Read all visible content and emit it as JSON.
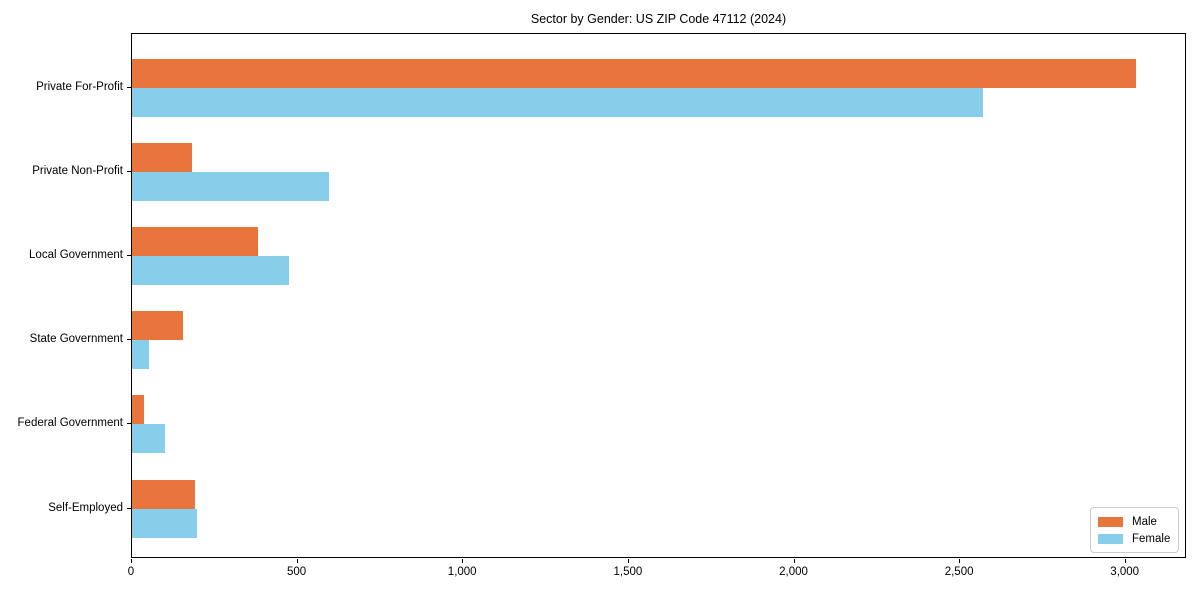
{
  "chart_data": {
    "type": "bar",
    "orientation": "horizontal",
    "title": "Sector by Gender: US ZIP Code 47112 (2024)",
    "categories": [
      "Private For-Profit",
      "Private Non-Profit",
      "Local Government",
      "State Government",
      "Federal Government",
      "Self-Employed"
    ],
    "series": [
      {
        "name": "Male",
        "color": "#e8763c",
        "values": [
          3030,
          180,
          380,
          155,
          35,
          190
        ]
      },
      {
        "name": "Female",
        "color": "#87ceeb",
        "values": [
          2570,
          595,
          475,
          50,
          100,
          195
        ]
      }
    ],
    "xlabel": "",
    "ylabel": "",
    "xlim": [
      0,
      3185
    ],
    "xticks": [
      0,
      500,
      1000,
      1500,
      2000,
      2500,
      3000
    ],
    "xtick_labels": [
      "0",
      "500",
      "1,000",
      "1,500",
      "2,000",
      "2,500",
      "3,000"
    ],
    "grid": false,
    "legend": {
      "position": "lower-right",
      "entries": [
        "Male",
        "Female"
      ]
    },
    "colors": {
      "spine": "#000000",
      "text": "#000000",
      "legend_border": "#cccccc",
      "background": "#ffffff"
    }
  }
}
